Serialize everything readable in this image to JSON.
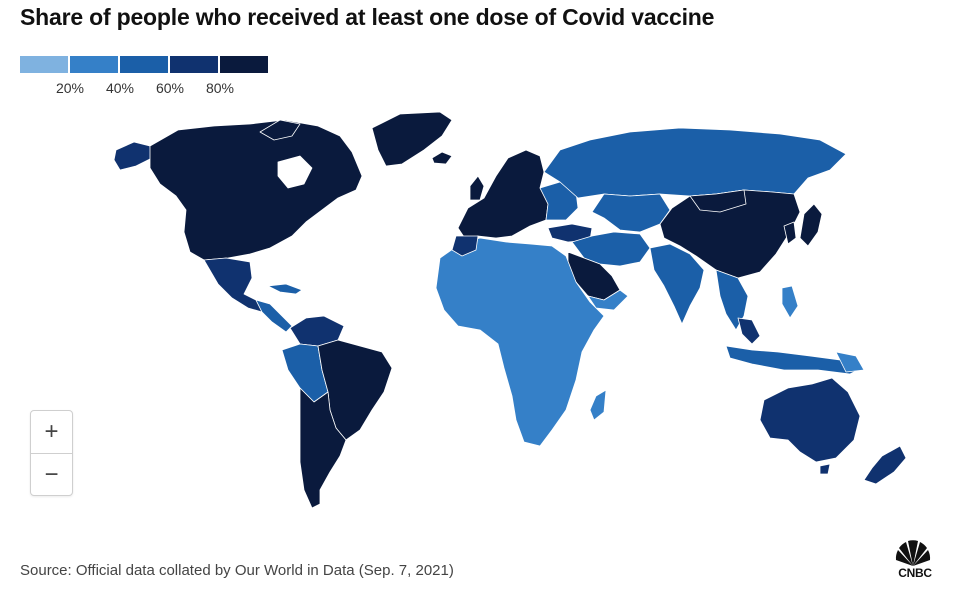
{
  "header": {
    "title": "Share of people who received at least one dose of Covid vaccine"
  },
  "legend": {
    "colors": [
      "#7fb2e0",
      "#3580c8",
      "#1b5fa8",
      "#10326f",
      "#0a1a3d"
    ],
    "labels": [
      "20%",
      "40%",
      "60%",
      "80%"
    ]
  },
  "map": {
    "scale_thresholds_percent": [
      20,
      40,
      60,
      80
    ],
    "regions": [
      {
        "region": "North America",
        "bin": 4
      },
      {
        "region": "Mexico and Central America",
        "bin": 3
      },
      {
        "region": "Brazil",
        "bin": 4
      },
      {
        "region": "Argentina and Chile",
        "bin": 4
      },
      {
        "region": "Peru, Bolivia, Paraguay",
        "bin": 2
      },
      {
        "region": "Western Europe",
        "bin": 4
      },
      {
        "region": "Eastern Europe",
        "bin": 2
      },
      {
        "region": "Russia",
        "bin": 2
      },
      {
        "region": "Central Asia and Middle East",
        "bin": 2
      },
      {
        "region": "Saudi Arabia",
        "bin": 4
      },
      {
        "region": "India",
        "bin": 2
      },
      {
        "region": "China",
        "bin": 4
      },
      {
        "region": "Japan",
        "bin": 4
      },
      {
        "region": "Southeast Asia",
        "bin": 2
      },
      {
        "region": "Africa",
        "bin": 1
      },
      {
        "region": "Morocco",
        "bin": 3
      },
      {
        "region": "Australia",
        "bin": 3
      },
      {
        "region": "New Zealand",
        "bin": 3
      },
      {
        "region": "Greenland",
        "bin": 4
      },
      {
        "region": "Madagascar",
        "bin": 1
      }
    ]
  },
  "controls": {
    "zoom_in": "+",
    "zoom_out": "−"
  },
  "footer": {
    "source": "Source: Official data collated by Our World in Data (Sep. 7, 2021)",
    "logo_text": "CNBC"
  }
}
